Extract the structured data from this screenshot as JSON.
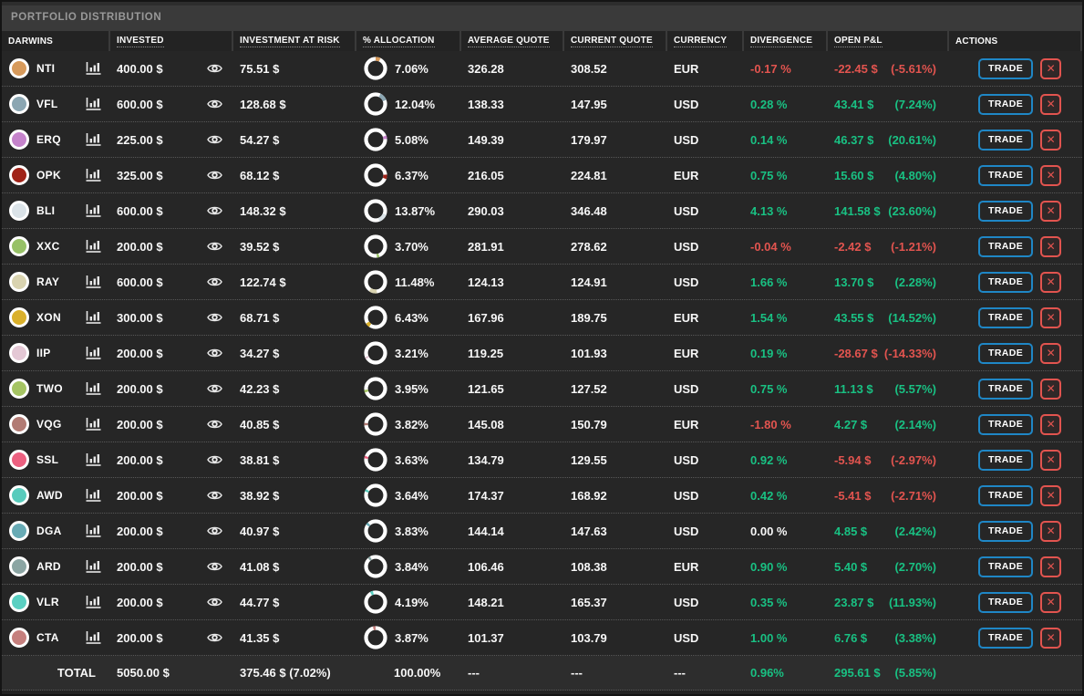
{
  "title": "PORTFOLIO DISTRIBUTION",
  "columns": [
    "DARWINS",
    "INVESTED",
    "INVESTMENT AT RISK",
    "% ALLOCATION",
    "AVERAGE QUOTE",
    "CURRENT QUOTE",
    "CURRENCY",
    "DIVERGENCE",
    "OPEN P&L",
    "ACTIONS"
  ],
  "colors": {
    "positive_green": "#19c183",
    "negative_red": "#e2544f",
    "trade_button_border_blue": "#1f87c6",
    "title_text": "#999999",
    "row_background": "#262626",
    "donut_ring_white": "#ffffff"
  },
  "actions": {
    "trade_label": "TRADE",
    "close_glyph": "✕"
  },
  "rows": [
    {
      "name": "NTI",
      "color": "#d79a5b",
      "invested": "400.00 $",
      "at_risk": "75.51 $",
      "allocation_pct": 7.06,
      "allocation": "7.06%",
      "avg_quote": "326.28",
      "current_quote": "308.52",
      "currency": "EUR",
      "divergence": "-0.17 %",
      "divergence_status": "negative",
      "pnl": "-22.45 $",
      "pnl_pct": "(-5.61%)",
      "pnl_status": "negative"
    },
    {
      "name": "VFL",
      "color": "#8ba6b2",
      "invested": "600.00 $",
      "at_risk": "128.68 $",
      "allocation_pct": 12.04,
      "allocation": "12.04%",
      "avg_quote": "138.33",
      "current_quote": "147.95",
      "currency": "USD",
      "divergence": "0.28 %",
      "divergence_status": "positive",
      "pnl": "43.41 $",
      "pnl_pct": "(7.24%)",
      "pnl_status": "positive"
    },
    {
      "name": "ERQ",
      "color": "#c583cb",
      "invested": "225.00 $",
      "at_risk": "54.27 $",
      "allocation_pct": 5.08,
      "allocation": "5.08%",
      "avg_quote": "149.39",
      "current_quote": "179.97",
      "currency": "USD",
      "divergence": "0.14 %",
      "divergence_status": "positive",
      "pnl": "46.37 $",
      "pnl_pct": "(20.61%)",
      "pnl_status": "positive"
    },
    {
      "name": "OPK",
      "color": "#a02318",
      "invested": "325.00 $",
      "at_risk": "68.12 $",
      "allocation_pct": 6.37,
      "allocation": "6.37%",
      "avg_quote": "216.05",
      "current_quote": "224.81",
      "currency": "EUR",
      "divergence": "0.75 %",
      "divergence_status": "positive",
      "pnl": "15.60 $",
      "pnl_pct": "(4.80%)",
      "pnl_status": "positive"
    },
    {
      "name": "BLI",
      "color": "#dbe3e8",
      "invested": "600.00 $",
      "at_risk": "148.32 $",
      "allocation_pct": 13.87,
      "allocation": "13.87%",
      "avg_quote": "290.03",
      "current_quote": "346.48",
      "currency": "USD",
      "divergence": "4.13 %",
      "divergence_status": "positive",
      "pnl": "141.58 $",
      "pnl_pct": "(23.60%)",
      "pnl_status": "positive"
    },
    {
      "name": "XXC",
      "color": "#97c167",
      "invested": "200.00 $",
      "at_risk": "39.52 $",
      "allocation_pct": 3.7,
      "allocation": "3.70%",
      "avg_quote": "281.91",
      "current_quote": "278.62",
      "currency": "USD",
      "divergence": "-0.04 %",
      "divergence_status": "negative",
      "pnl": "-2.42 $",
      "pnl_pct": "(-1.21%)",
      "pnl_status": "negative"
    },
    {
      "name": "RAY",
      "color": "#d9d3b0",
      "invested": "600.00 $",
      "at_risk": "122.74 $",
      "allocation_pct": 11.48,
      "allocation": "11.48%",
      "avg_quote": "124.13",
      "current_quote": "124.91",
      "currency": "USD",
      "divergence": "1.66 %",
      "divergence_status": "positive",
      "pnl": "13.70 $",
      "pnl_pct": "(2.28%)",
      "pnl_status": "positive"
    },
    {
      "name": "XON",
      "color": "#dab02b",
      "invested": "300.00 $",
      "at_risk": "68.71 $",
      "allocation_pct": 6.43,
      "allocation": "6.43%",
      "avg_quote": "167.96",
      "current_quote": "189.75",
      "currency": "EUR",
      "divergence": "1.54 %",
      "divergence_status": "positive",
      "pnl": "43.55 $",
      "pnl_pct": "(14.52%)",
      "pnl_status": "positive"
    },
    {
      "name": "IIP",
      "color": "#e4c8d5",
      "invested": "200.00 $",
      "at_risk": "34.27 $",
      "allocation_pct": 3.21,
      "allocation": "3.21%",
      "avg_quote": "119.25",
      "current_quote": "101.93",
      "currency": "EUR",
      "divergence": "0.19 %",
      "divergence_status": "positive",
      "pnl": "-28.67 $",
      "pnl_pct": "(-14.33%)",
      "pnl_status": "negative"
    },
    {
      "name": "TWO",
      "color": "#a5c463",
      "invested": "200.00 $",
      "at_risk": "42.23 $",
      "allocation_pct": 3.95,
      "allocation": "3.95%",
      "avg_quote": "121.65",
      "current_quote": "127.52",
      "currency": "USD",
      "divergence": "0.75 %",
      "divergence_status": "positive",
      "pnl": "11.13 $",
      "pnl_pct": "(5.57%)",
      "pnl_status": "positive"
    },
    {
      "name": "VQG",
      "color": "#b27b74",
      "invested": "200.00 $",
      "at_risk": "40.85 $",
      "allocation_pct": 3.82,
      "allocation": "3.82%",
      "avg_quote": "145.08",
      "current_quote": "150.79",
      "currency": "EUR",
      "divergence": "-1.80 %",
      "divergence_status": "negative",
      "pnl": "4.27 $",
      "pnl_pct": "(2.14%)",
      "pnl_status": "positive"
    },
    {
      "name": "SSL",
      "color": "#ec6080",
      "invested": "200.00 $",
      "at_risk": "38.81 $",
      "allocation_pct": 3.63,
      "allocation": "3.63%",
      "avg_quote": "134.79",
      "current_quote": "129.55",
      "currency": "USD",
      "divergence": "0.92 %",
      "divergence_status": "positive",
      "pnl": "-5.94 $",
      "pnl_pct": "(-2.97%)",
      "pnl_status": "negative"
    },
    {
      "name": "AWD",
      "color": "#58cbbc",
      "invested": "200.00 $",
      "at_risk": "38.92 $",
      "allocation_pct": 3.64,
      "allocation": "3.64%",
      "avg_quote": "174.37",
      "current_quote": "168.92",
      "currency": "USD",
      "divergence": "0.42 %",
      "divergence_status": "positive",
      "pnl": "-5.41 $",
      "pnl_pct": "(-2.71%)",
      "pnl_status": "negative"
    },
    {
      "name": "DGA",
      "color": "#68abb5",
      "invested": "200.00 $",
      "at_risk": "40.97 $",
      "allocation_pct": 3.83,
      "allocation": "3.83%",
      "avg_quote": "144.14",
      "current_quote": "147.63",
      "currency": "USD",
      "divergence": "0.00 %",
      "divergence_status": "neutral",
      "pnl": "4.85 $",
      "pnl_pct": "(2.42%)",
      "pnl_status": "positive"
    },
    {
      "name": "ARD",
      "color": "#8ba5a3",
      "invested": "200.00 $",
      "at_risk": "41.08 $",
      "allocation_pct": 3.84,
      "allocation": "3.84%",
      "avg_quote": "106.46",
      "current_quote": "108.38",
      "currency": "EUR",
      "divergence": "0.90 %",
      "divergence_status": "positive",
      "pnl": "5.40 $",
      "pnl_pct": "(2.70%)",
      "pnl_status": "positive"
    },
    {
      "name": "VLR",
      "color": "#5ad0c2",
      "invested": "200.00 $",
      "at_risk": "44.77 $",
      "allocation_pct": 4.19,
      "allocation": "4.19%",
      "avg_quote": "148.21",
      "current_quote": "165.37",
      "currency": "USD",
      "divergence": "0.35 %",
      "divergence_status": "positive",
      "pnl": "23.87 $",
      "pnl_pct": "(11.93%)",
      "pnl_status": "positive"
    },
    {
      "name": "CTA",
      "color": "#c57f7d",
      "invested": "200.00 $",
      "at_risk": "41.35 $",
      "allocation_pct": 3.87,
      "allocation": "3.87%",
      "avg_quote": "101.37",
      "current_quote": "103.79",
      "currency": "USD",
      "divergence": "1.00 %",
      "divergence_status": "positive",
      "pnl": "6.76 $",
      "pnl_pct": "(3.38%)",
      "pnl_status": "positive"
    }
  ],
  "total": {
    "label": "TOTAL",
    "invested": "5050.00 $",
    "at_risk": "375.46 $ (7.02%)",
    "allocation": "100.00%",
    "avg_quote": "---",
    "current_quote": "---",
    "currency": "---",
    "divergence": "0.96%",
    "divergence_status": "positive",
    "pnl": "295.61 $",
    "pnl_pct": "(5.85%)",
    "pnl_status": "positive"
  }
}
